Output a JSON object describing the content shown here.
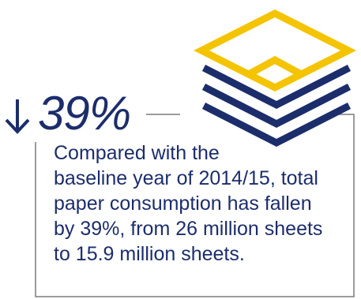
{
  "stat": {
    "direction_icon": "down-arrow-icon",
    "value": "39%"
  },
  "description": {
    "lines": [
      "Compared with the",
      "baseline year of 2014/15, total",
      "paper consumption has fallen",
      "by 39%, from 26 million sheets",
      "to 15.9 million sheets."
    ]
  },
  "illustration": {
    "icon": "paper-stack-icon",
    "top_sheet_color": "#f4c400",
    "stack_line_color": "#1c2d6b"
  },
  "colors": {
    "text": "#1c2d6b",
    "accent": "#f4c400",
    "frame": "#7a7a7a"
  }
}
